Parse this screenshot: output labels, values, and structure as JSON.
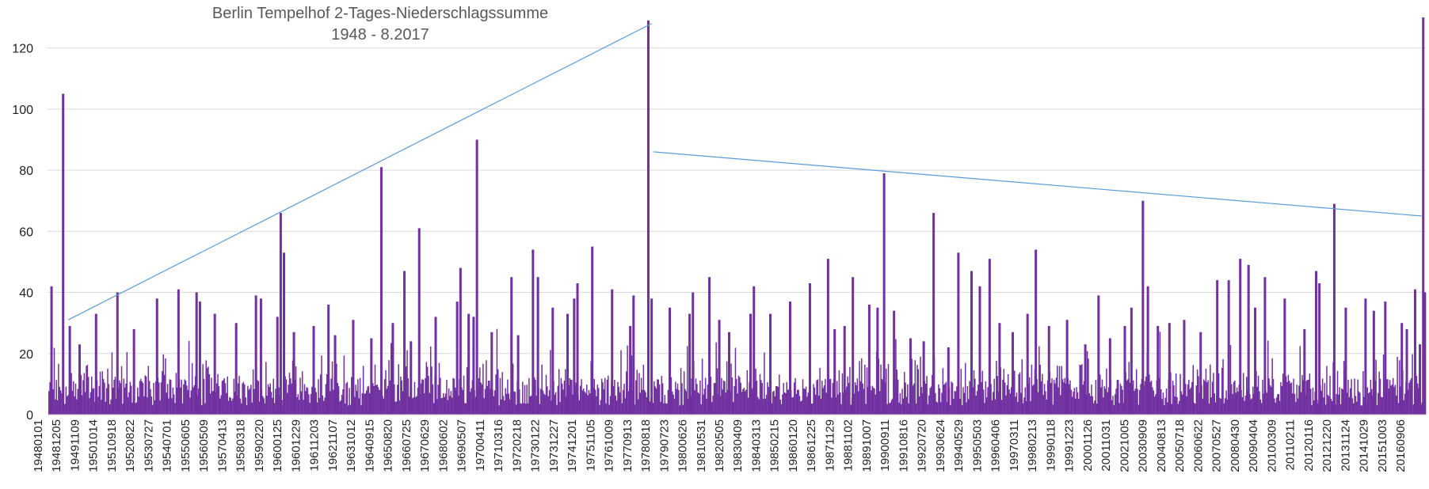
{
  "chart_data": {
    "type": "bar",
    "title": "Berlin Tempelhof 2-Tages-Niederschlagssumme",
    "subtitle": "1948 - 8.2017",
    "xlabel": "",
    "ylabel": "",
    "ylim": [
      0,
      130
    ],
    "yticks": [
      0,
      20,
      40,
      60,
      80,
      100,
      120
    ],
    "grid": true,
    "legend": "none",
    "color": "#7030A0",
    "trendline_color": "#5B9BD5",
    "categories": [
      "19480101",
      "19481205",
      "19491109",
      "19501014",
      "19510918",
      "19520822",
      "19530727",
      "19540701",
      "19550605",
      "19560509",
      "19570413",
      "19580318",
      "19590220",
      "19600125",
      "19601229",
      "19611203",
      "19621107",
      "19631012",
      "19640915",
      "19650820",
      "19660725",
      "19670629",
      "19680602",
      "19690507",
      "19700411",
      "19710316",
      "19720218",
      "19730122",
      "19731227",
      "19741201",
      "19751105",
      "19761009",
      "19770913",
      "19780818",
      "19790723",
      "19800626",
      "19810531",
      "19820505",
      "19830409",
      "19840313",
      "19850215",
      "19860120",
      "19861225",
      "19871129",
      "19881102",
      "19891007",
      "19900911",
      "19910816",
      "19920720",
      "19930624",
      "19940529",
      "19950503",
      "19960406",
      "19970311",
      "19980213",
      "19990118",
      "19991223",
      "20001126",
      "20011031",
      "20021005",
      "20030909",
      "20040813",
      "20050718",
      "20060622",
      "20070527",
      "20080430",
      "20090404",
      "20100309",
      "20110211",
      "20120116",
      "20121220",
      "20131124",
      "20141029",
      "20151003",
      "20160906"
    ],
    "peaks": [
      {
        "x": "1948-03",
        "y": 42
      },
      {
        "x": "1948-10",
        "y": 105
      },
      {
        "x": "1949-02",
        "y": 29
      },
      {
        "x": "1949-08",
        "y": 23
      },
      {
        "x": "1950-06",
        "y": 33
      },
      {
        "x": "1951-07",
        "y": 40
      },
      {
        "x": "1952-05",
        "y": 28
      },
      {
        "x": "1953-07",
        "y": 38
      },
      {
        "x": "1954-08",
        "y": 41
      },
      {
        "x": "1955-07",
        "y": 40
      },
      {
        "x": "1955-09",
        "y": 37
      },
      {
        "x": "1956-06",
        "y": 33
      },
      {
        "x": "1957-07",
        "y": 30
      },
      {
        "x": "1958-07",
        "y": 39
      },
      {
        "x": "1958-10",
        "y": 38
      },
      {
        "x": "1959-08",
        "y": 32
      },
      {
        "x": "1959-10",
        "y": 66
      },
      {
        "x": "1959-12",
        "y": 53
      },
      {
        "x": "1960-06",
        "y": 27
      },
      {
        "x": "1961-06",
        "y": 29
      },
      {
        "x": "1962-03",
        "y": 36
      },
      {
        "x": "1962-07",
        "y": 26
      },
      {
        "x": "1963-06",
        "y": 31
      },
      {
        "x": "1964-05",
        "y": 25
      },
      {
        "x": "1964-11",
        "y": 81
      },
      {
        "x": "1965-06",
        "y": 30
      },
      {
        "x": "1966-01",
        "y": 47
      },
      {
        "x": "1966-05",
        "y": 24
      },
      {
        "x": "1966-10",
        "y": 61
      },
      {
        "x": "1967-08",
        "y": 32
      },
      {
        "x": "1968-09",
        "y": 37
      },
      {
        "x": "1968-11",
        "y": 48
      },
      {
        "x": "1969-04",
        "y": 33
      },
      {
        "x": "1969-07",
        "y": 32
      },
      {
        "x": "1969-09",
        "y": 90
      },
      {
        "x": "1970-06",
        "y": 27
      },
      {
        "x": "1971-06",
        "y": 45
      },
      {
        "x": "1971-10",
        "y": 26
      },
      {
        "x": "1972-07",
        "y": 54
      },
      {
        "x": "1972-10",
        "y": 45
      },
      {
        "x": "1973-07",
        "y": 35
      },
      {
        "x": "1974-04",
        "y": 33
      },
      {
        "x": "1974-08",
        "y": 38
      },
      {
        "x": "1974-10",
        "y": 43
      },
      {
        "x": "1975-07",
        "y": 55
      },
      {
        "x": "1976-07",
        "y": 41
      },
      {
        "x": "1977-06",
        "y": 29
      },
      {
        "x": "1977-08",
        "y": 39
      },
      {
        "x": "1978-05",
        "y": 129
      },
      {
        "x": "1978-07",
        "y": 38
      },
      {
        "x": "1979-06",
        "y": 35
      },
      {
        "x": "1980-06",
        "y": 33
      },
      {
        "x": "1980-08",
        "y": 40
      },
      {
        "x": "1981-06",
        "y": 45
      },
      {
        "x": "1981-12",
        "y": 31
      },
      {
        "x": "1982-06",
        "y": 27
      },
      {
        "x": "1983-07",
        "y": 33
      },
      {
        "x": "1983-09",
        "y": 42
      },
      {
        "x": "1984-07",
        "y": 33
      },
      {
        "x": "1985-07",
        "y": 37
      },
      {
        "x": "1986-07",
        "y": 43
      },
      {
        "x": "1987-06",
        "y": 51
      },
      {
        "x": "1987-10",
        "y": 28
      },
      {
        "x": "1988-04",
        "y": 29
      },
      {
        "x": "1988-09",
        "y": 45
      },
      {
        "x": "1989-07",
        "y": 36
      },
      {
        "x": "1989-12",
        "y": 35
      },
      {
        "x": "1990-04",
        "y": 79
      },
      {
        "x": "1990-10",
        "y": 34
      },
      {
        "x": "1991-08",
        "y": 25
      },
      {
        "x": "1992-04",
        "y": 24
      },
      {
        "x": "1992-10",
        "y": 66
      },
      {
        "x": "1993-07",
        "y": 22
      },
      {
        "x": "1994-01",
        "y": 53
      },
      {
        "x": "1994-09",
        "y": 47
      },
      {
        "x": "1995-02",
        "y": 42
      },
      {
        "x": "1995-08",
        "y": 51
      },
      {
        "x": "1996-02",
        "y": 30
      },
      {
        "x": "1996-10",
        "y": 27
      },
      {
        "x": "1997-07",
        "y": 33
      },
      {
        "x": "1997-12",
        "y": 54
      },
      {
        "x": "1998-08",
        "y": 29
      },
      {
        "x": "1999-07",
        "y": 31
      },
      {
        "x": "2000-06",
        "y": 23
      },
      {
        "x": "2001-02",
        "y": 39
      },
      {
        "x": "2001-09",
        "y": 25
      },
      {
        "x": "2002-06",
        "y": 29
      },
      {
        "x": "2002-10",
        "y": 35
      },
      {
        "x": "2003-05",
        "y": 70
      },
      {
        "x": "2003-08",
        "y": 42
      },
      {
        "x": "2004-02",
        "y": 29
      },
      {
        "x": "2004-09",
        "y": 30
      },
      {
        "x": "2005-06",
        "y": 31
      },
      {
        "x": "2006-04",
        "y": 27
      },
      {
        "x": "2007-02",
        "y": 44
      },
      {
        "x": "2007-09",
        "y": 44
      },
      {
        "x": "2008-04",
        "y": 51
      },
      {
        "x": "2008-09",
        "y": 49
      },
      {
        "x": "2009-01",
        "y": 35
      },
      {
        "x": "2009-07",
        "y": 45
      },
      {
        "x": "2010-07",
        "y": 38
      },
      {
        "x": "2011-07",
        "y": 28
      },
      {
        "x": "2012-02",
        "y": 47
      },
      {
        "x": "2012-04",
        "y": 43
      },
      {
        "x": "2013-01",
        "y": 69
      },
      {
        "x": "2013-08",
        "y": 35
      },
      {
        "x": "2014-08",
        "y": 38
      },
      {
        "x": "2015-01",
        "y": 34
      },
      {
        "x": "2015-08",
        "y": 37
      },
      {
        "x": "2016-06",
        "y": 30
      },
      {
        "x": "2016-09",
        "y": 28
      },
      {
        "x": "2017-02",
        "y": 41
      },
      {
        "x": "2017-05",
        "y": 23
      },
      {
        "x": "2017-07",
        "y": 130
      },
      {
        "x": "2017-08",
        "y": 40
      }
    ],
    "trendlines": [
      {
        "x": [
          "1949-01",
          "1978-07"
        ],
        "y": [
          31,
          128
        ]
      },
      {
        "x": [
          "1978-08",
          "2017-06"
        ],
        "y": [
          86,
          65
        ]
      }
    ]
  }
}
